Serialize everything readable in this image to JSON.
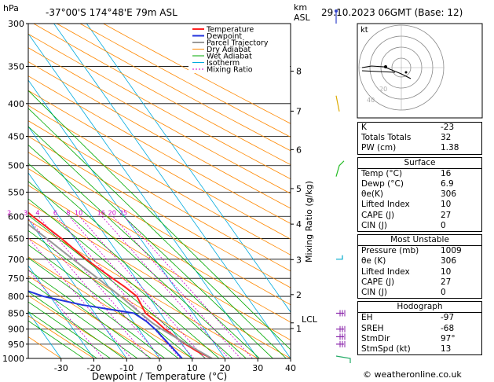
{
  "header": {
    "hpa_label": "hPa",
    "location": "-37°00'S  174°48'E  79m  ASL",
    "km_label": "km",
    "asl_label": "ASL",
    "datetime": "29.10.2023  06GMT  (Base: 12)"
  },
  "chart_data": {
    "type": "skew-t",
    "xlabel": "Dewpoint / Temperature (°C)",
    "ylabel_right": "Mixing Ratio (g/kg)",
    "x_ticks": [
      -30,
      -20,
      -10,
      0,
      10,
      20,
      30,
      40
    ],
    "xlim": [
      -40,
      40
    ],
    "pressure_levels": [
      300,
      350,
      400,
      450,
      500,
      550,
      600,
      650,
      700,
      750,
      800,
      850,
      900,
      950,
      1000
    ],
    "ylim": [
      1000,
      300
    ],
    "km_ticks": [
      {
        "km": "8",
        "p": 356
      },
      {
        "km": "7",
        "p": 411
      },
      {
        "km": "6",
        "p": 472
      },
      {
        "km": "5",
        "p": 543
      },
      {
        "km": "4",
        "p": 617
      },
      {
        "km": "3",
        "p": 701
      },
      {
        "km": "2",
        "p": 795
      },
      {
        "km": "1",
        "p": 898
      }
    ],
    "lcl": {
      "label": "LCL",
      "p": 880
    },
    "mixing_ratio_labels": [
      "1",
      "2",
      "3",
      "4",
      "6",
      "8",
      "10",
      "16",
      "20",
      "25"
    ],
    "legend": [
      "Temperature",
      "Dewpoint",
      "Parcel Trajectory",
      "Dry Adiabat",
      "Wet Adiabat",
      "Isotherm",
      "Mixing Ratio"
    ],
    "legend_colors": [
      "#ff2222",
      "#2233dd",
      "#999999",
      "#ff8800",
      "#00aa00",
      "#00aadd",
      "#cc00cc"
    ],
    "series": [
      {
        "name": "Temperature",
        "color": "#ff2222",
        "points": [
          [
            1000,
            16
          ],
          [
            975,
            13
          ],
          [
            950,
            11
          ],
          [
            925,
            9.5
          ],
          [
            900,
            8
          ],
          [
            875,
            7
          ],
          [
            850,
            5.5
          ],
          [
            825,
            6
          ],
          [
            800,
            6.5
          ],
          [
            775,
            5
          ],
          [
            750,
            3
          ],
          [
            725,
            1
          ],
          [
            700,
            -1
          ],
          [
            650,
            -4
          ],
          [
            600,
            -8
          ],
          [
            550,
            -11.5
          ],
          [
            500,
            -16
          ],
          [
            450,
            -21
          ],
          [
            400,
            -27
          ],
          [
            350,
            -34
          ],
          [
            300,
            -43
          ]
        ]
      },
      {
        "name": "Dewpoint",
        "color": "#2233dd",
        "points": [
          [
            1000,
            6.9
          ],
          [
            950,
            6
          ],
          [
            900,
            5
          ],
          [
            875,
            4
          ],
          [
            850,
            2
          ],
          [
            825,
            -12
          ],
          [
            800,
            -22
          ],
          [
            775,
            -28
          ],
          [
            750,
            -35
          ],
          [
            725,
            -40
          ],
          [
            700,
            -42
          ],
          [
            675,
            -39
          ],
          [
            650,
            -32
          ],
          [
            625,
            -25
          ],
          [
            600,
            -14
          ],
          [
            575,
            -11
          ],
          [
            550,
            -10
          ],
          [
            500,
            -17
          ],
          [
            450,
            -25
          ],
          [
            400,
            -35
          ],
          [
            350,
            -38
          ],
          [
            300,
            -48
          ]
        ]
      },
      {
        "name": "Parcel Trajectory",
        "color": "#999999",
        "points": [
          [
            1000,
            16
          ],
          [
            950,
            11.5
          ],
          [
            900,
            7
          ],
          [
            880,
            5.5
          ],
          [
            850,
            4
          ],
          [
            800,
            1.5
          ],
          [
            750,
            -1.5
          ],
          [
            700,
            -5
          ],
          [
            650,
            -8.5
          ],
          [
            600,
            -12.5
          ],
          [
            550,
            -17
          ],
          [
            500,
            -22
          ],
          [
            450,
            -28
          ],
          [
            400,
            -35
          ],
          [
            350,
            -43
          ],
          [
            300,
            -52
          ]
        ]
      }
    ]
  },
  "hodograph": {
    "label": "kt",
    "ring_labels": [
      "20",
      "40"
    ]
  },
  "indices": [
    {
      "label": "K",
      "value": "-23"
    },
    {
      "label": "Totals Totals",
      "value": "32"
    },
    {
      "label": "PW (cm)",
      "value": "1.38"
    }
  ],
  "surface": {
    "title": "Surface",
    "rows": [
      {
        "label": "Temp (°C)",
        "value": "16"
      },
      {
        "label": "Dewp (°C)",
        "value": "6.9"
      },
      {
        "label": "θe(K)",
        "value": "306"
      },
      {
        "label": "Lifted Index",
        "value": "10"
      },
      {
        "label": "CAPE (J)",
        "value": "27"
      },
      {
        "label": "CIN (J)",
        "value": "0"
      }
    ]
  },
  "unstable": {
    "title": "Most Unstable",
    "rows": [
      {
        "label": "Pressure (mb)",
        "value": "1009"
      },
      {
        "label": "θe (K)",
        "value": "306"
      },
      {
        "label": "Lifted Index",
        "value": "10"
      },
      {
        "label": "CAPE (J)",
        "value": "27"
      },
      {
        "label": "CIN (J)",
        "value": "0"
      }
    ]
  },
  "hodo_table": {
    "title": "Hodograph",
    "rows": [
      {
        "label": "EH",
        "value": "-97"
      },
      {
        "label": "SREH",
        "value": "-68"
      },
      {
        "label": "StmDir",
        "value": "97°"
      },
      {
        "label": "StmSpd (kt)",
        "value": "13"
      }
    ]
  },
  "copyright": "© weatheronline.co.uk"
}
